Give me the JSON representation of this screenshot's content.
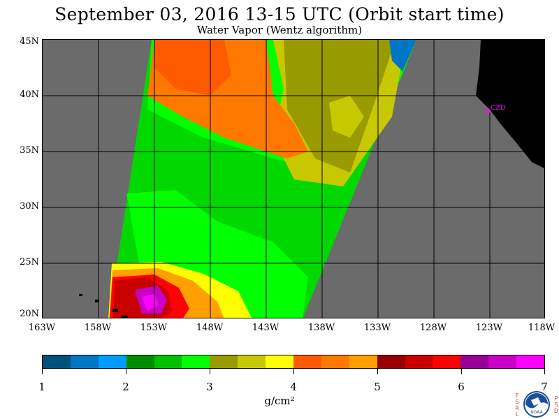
{
  "header": {
    "title": "September 03, 2016  13-15 UTC  (Orbit start time)",
    "subtitle": "Water Vapor (Wentz algorithm)"
  },
  "map": {
    "lat_labels": [
      "45N",
      "40N",
      "35N",
      "30N",
      "25N",
      "20N"
    ],
    "lon_labels": [
      "163W",
      "158W",
      "153W",
      "148W",
      "143W",
      "138W",
      "133W",
      "128W",
      "123W",
      "118W"
    ],
    "marker_label": "CZD",
    "colors": {
      "background": "#6b6b6b",
      "land": "#000000",
      "grid": "#000000",
      "marker": "#ff00ff"
    }
  },
  "colorbar": {
    "units": "g/cm²",
    "ticks": [
      "1",
      "2",
      "3",
      "4",
      "5",
      "6",
      "7"
    ],
    "colors": [
      "#00527a",
      "#0076c4",
      "#009cff",
      "#008c00",
      "#00c000",
      "#00ff00",
      "#999900",
      "#c8c800",
      "#ffff00",
      "#ff5a00",
      "#ff7800",
      "#ffa000",
      "#960000",
      "#c80000",
      "#ff0000",
      "#960096",
      "#c800c8",
      "#ff00ff"
    ]
  },
  "logo": {
    "left_letters": "ESRL",
    "right_letters": "PSD",
    "name": "NOAA"
  }
}
